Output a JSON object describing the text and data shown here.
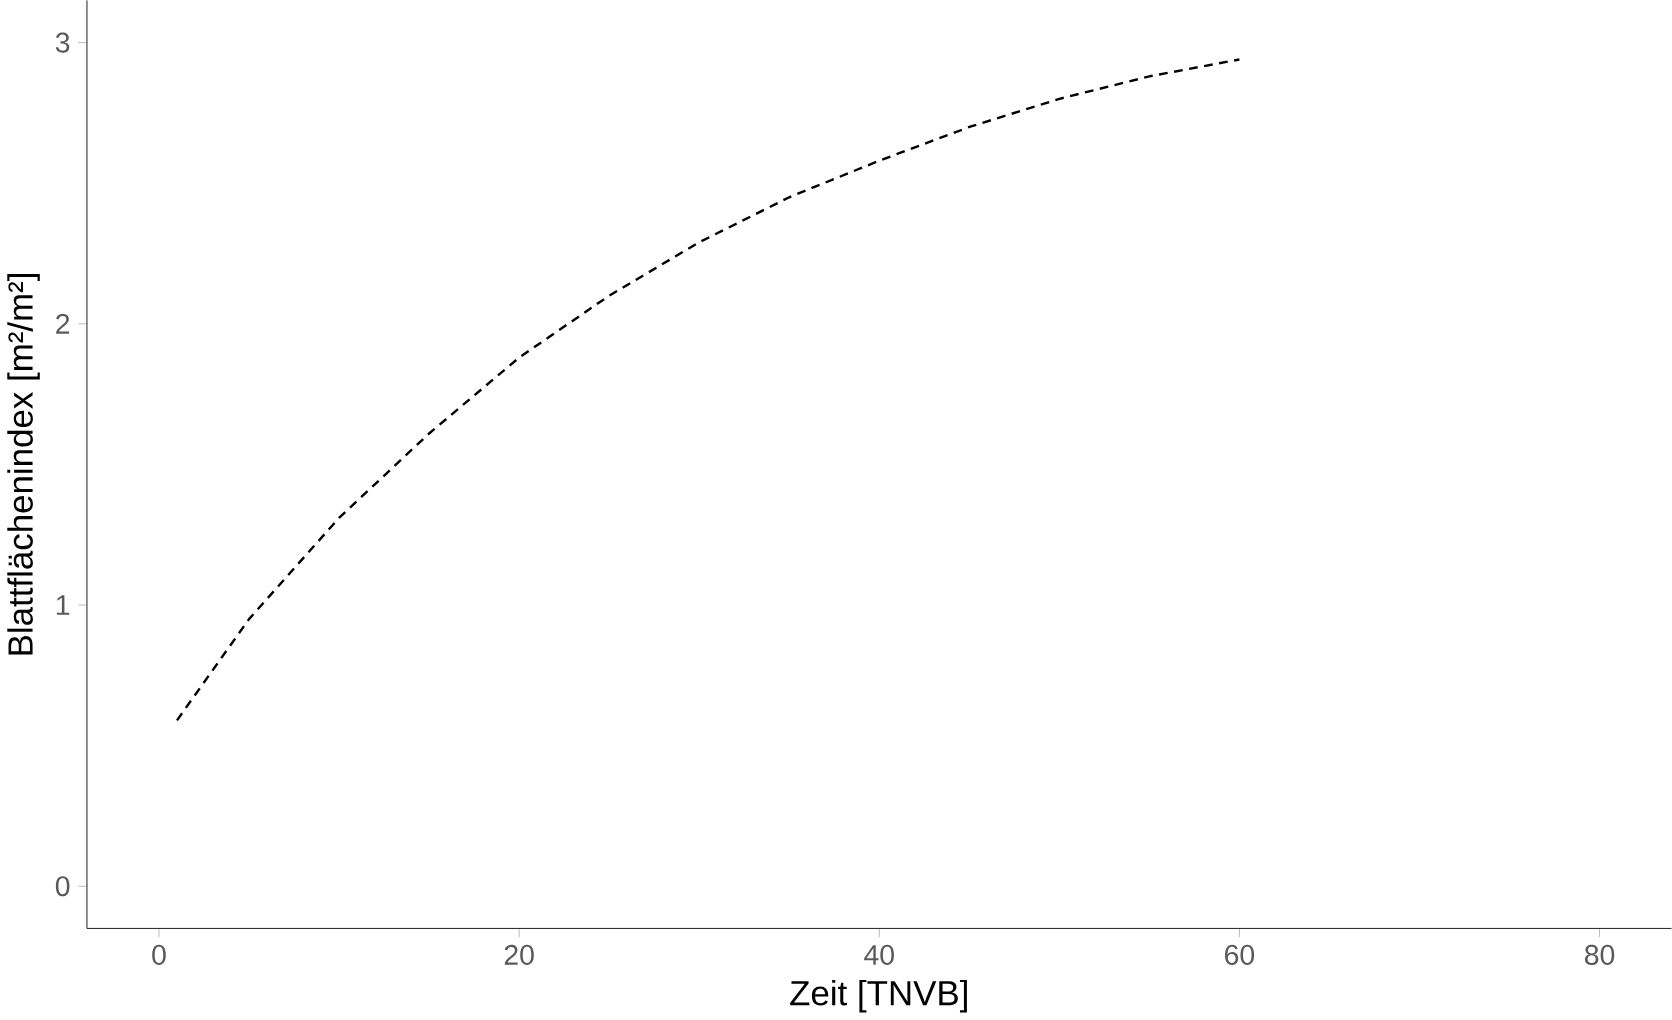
{
  "chart_data": {
    "type": "line",
    "xlabel": "Zeit [TNVB]",
    "ylabel": "Blattflächenindex [m²/m²]",
    "x": [
      1,
      5,
      10,
      15,
      20,
      25,
      30,
      35,
      40,
      45,
      50,
      55,
      60
    ],
    "series": [
      {
        "color": "#000000",
        "line_style": "dashed",
        "values": [
          0.59,
          0.95,
          1.31,
          1.61,
          1.88,
          2.1,
          2.29,
          2.45,
          2.58,
          2.7,
          2.8,
          2.88,
          2.94
        ]
      }
    ],
    "xlim": [
      -4,
      84
    ],
    "ylim": [
      -0.15,
      3.15
    ],
    "xticks": [
      0,
      20,
      40,
      60,
      80
    ],
    "yticks": [
      0,
      1,
      2,
      3
    ]
  }
}
